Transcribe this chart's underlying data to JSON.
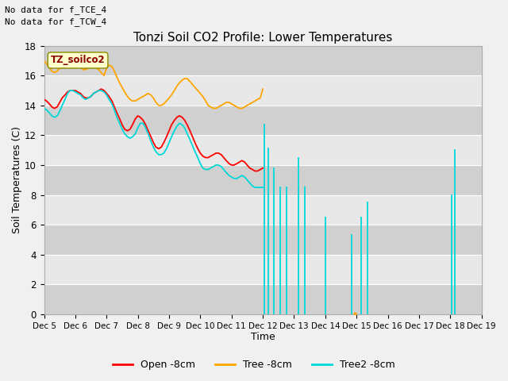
{
  "title": "Tonzi Soil CO2 Profile: Lower Temperatures",
  "xlabel": "Time",
  "ylabel": "Soil Temperatures (C)",
  "ylim": [
    0,
    18
  ],
  "xlim": [
    0,
    14
  ],
  "annotations": [
    "No data for f_TCE_4",
    "No data for f_TCW_4"
  ],
  "legend_box_label": "TZ_soilco2",
  "xtick_labels": [
    "Dec 5",
    "Dec 6",
    "Dec 7",
    "Dec 8",
    "Dec 9",
    "Dec 10",
    "Dec 11",
    "Dec 12",
    "Dec 13",
    "Dec 14",
    "Dec 15",
    "Dec 16",
    "Dec 17",
    "Dec 18",
    "Dec 19"
  ],
  "yticks": [
    0,
    2,
    4,
    6,
    8,
    10,
    12,
    14,
    16,
    18
  ],
  "colors": {
    "open": "#ff0000",
    "tree": "#ffa500",
    "tree2": "#00d8d8",
    "fig_bg": "#f0f0f0",
    "plot_bg": "#dcdcdc",
    "grid": "#ffffff",
    "band_light": "#e8e8e8",
    "band_dark": "#d0d0d0"
  },
  "legend_labels": [
    "Open -8cm",
    "Tree -8cm",
    "Tree2 -8cm"
  ],
  "open_x": [
    0.0,
    0.08,
    0.17,
    0.25,
    0.33,
    0.42,
    0.5,
    0.58,
    0.67,
    0.75,
    0.83,
    0.92,
    1.0,
    1.08,
    1.17,
    1.25,
    1.33,
    1.42,
    1.5,
    1.58,
    1.67,
    1.75,
    1.83,
    1.92,
    2.0,
    2.08,
    2.17,
    2.25,
    2.33,
    2.42,
    2.5,
    2.58,
    2.67,
    2.75,
    2.83,
    2.92,
    3.0,
    3.08,
    3.17,
    3.25,
    3.33,
    3.42,
    3.5,
    3.58,
    3.67,
    3.75,
    3.83,
    3.92,
    4.0,
    4.08,
    4.17,
    4.25,
    4.33,
    4.42,
    4.5,
    4.58,
    4.67,
    4.75,
    4.83,
    4.92,
    5.0,
    5.08,
    5.17,
    5.25,
    5.33,
    5.42,
    5.5,
    5.58,
    5.67,
    5.75,
    5.83,
    5.92,
    6.0,
    6.08,
    6.17,
    6.25,
    6.33,
    6.42,
    6.5,
    6.58,
    6.67,
    6.75,
    6.83,
    6.92,
    7.0
  ],
  "open_y": [
    14.4,
    14.3,
    14.1,
    13.9,
    13.8,
    13.9,
    14.2,
    14.5,
    14.7,
    14.9,
    15.0,
    15.0,
    15.0,
    14.9,
    14.8,
    14.6,
    14.5,
    14.5,
    14.6,
    14.8,
    14.9,
    15.0,
    15.1,
    15.0,
    14.8,
    14.6,
    14.3,
    13.9,
    13.5,
    13.1,
    12.7,
    12.4,
    12.3,
    12.4,
    12.7,
    13.1,
    13.3,
    13.2,
    13.0,
    12.7,
    12.3,
    11.9,
    11.5,
    11.2,
    11.1,
    11.2,
    11.5,
    11.9,
    12.3,
    12.7,
    13.0,
    13.2,
    13.3,
    13.2,
    13.0,
    12.7,
    12.3,
    11.9,
    11.5,
    11.1,
    10.8,
    10.6,
    10.5,
    10.5,
    10.6,
    10.7,
    10.8,
    10.8,
    10.7,
    10.5,
    10.3,
    10.1,
    10.0,
    10.0,
    10.1,
    10.2,
    10.3,
    10.2,
    10.0,
    9.8,
    9.7,
    9.6,
    9.6,
    9.7,
    9.8
  ],
  "tree_x": [
    0.0,
    0.08,
    0.17,
    0.25,
    0.33,
    0.42,
    0.5,
    0.58,
    0.67,
    0.75,
    0.83,
    0.92,
    1.0,
    1.08,
    1.17,
    1.25,
    1.33,
    1.42,
    1.5,
    1.58,
    1.67,
    1.75,
    1.83,
    1.92,
    2.0,
    2.08,
    2.17,
    2.25,
    2.33,
    2.42,
    2.5,
    2.58,
    2.67,
    2.75,
    2.83,
    2.92,
    3.0,
    3.08,
    3.17,
    3.25,
    3.33,
    3.42,
    3.5,
    3.58,
    3.67,
    3.75,
    3.83,
    3.92,
    4.0,
    4.08,
    4.17,
    4.25,
    4.33,
    4.42,
    4.5,
    4.58,
    4.67,
    4.75,
    4.83,
    4.92,
    5.0,
    5.08,
    5.17,
    5.25,
    5.33,
    5.42,
    5.5,
    5.58,
    5.67,
    5.75,
    5.83,
    5.92,
    6.0,
    6.08,
    6.17,
    6.25,
    6.33,
    6.42,
    6.5,
    6.58,
    6.67,
    6.75,
    6.83,
    6.92,
    7.0
  ],
  "tree_y": [
    17.0,
    16.8,
    16.5,
    16.3,
    16.2,
    16.3,
    16.5,
    16.7,
    16.8,
    16.8,
    16.7,
    16.6,
    16.7,
    16.7,
    16.6,
    16.4,
    16.4,
    16.5,
    16.6,
    16.6,
    16.5,
    16.4,
    16.2,
    16.0,
    16.5,
    16.7,
    16.6,
    16.3,
    15.9,
    15.5,
    15.2,
    14.9,
    14.6,
    14.4,
    14.3,
    14.3,
    14.4,
    14.5,
    14.6,
    14.7,
    14.8,
    14.7,
    14.5,
    14.2,
    14.0,
    14.0,
    14.1,
    14.3,
    14.5,
    14.7,
    15.0,
    15.3,
    15.5,
    15.7,
    15.8,
    15.8,
    15.6,
    15.4,
    15.2,
    15.0,
    14.8,
    14.6,
    14.3,
    14.0,
    13.9,
    13.8,
    13.8,
    13.9,
    14.0,
    14.1,
    14.2,
    14.2,
    14.1,
    14.0,
    13.9,
    13.8,
    13.8,
    13.9,
    14.0,
    14.1,
    14.2,
    14.3,
    14.4,
    14.5,
    15.1
  ],
  "tree2_early_x": [
    0.0,
    0.08,
    0.17,
    0.25,
    0.33,
    0.42,
    0.5,
    0.58,
    0.67,
    0.75,
    0.83,
    0.92,
    1.0,
    1.08,
    1.17,
    1.25,
    1.33,
    1.42,
    1.5,
    1.58,
    1.67,
    1.75,
    1.83,
    1.92,
    2.0,
    2.08,
    2.17,
    2.25,
    2.33,
    2.42,
    2.5,
    2.58,
    2.67,
    2.75,
    2.83,
    2.92,
    3.0,
    3.08,
    3.17,
    3.25,
    3.33,
    3.42,
    3.5,
    3.58,
    3.67,
    3.75,
    3.83,
    3.92,
    4.0,
    4.08,
    4.17,
    4.25,
    4.33,
    4.42,
    4.5,
    4.58,
    4.67,
    4.75,
    4.83,
    4.92,
    5.0,
    5.08,
    5.17,
    5.25,
    5.33,
    5.42,
    5.5,
    5.58,
    5.67,
    5.75,
    5.83,
    5.92,
    6.0,
    6.08,
    6.17,
    6.25,
    6.33,
    6.42,
    6.5,
    6.58,
    6.67,
    6.75,
    6.83,
    6.92,
    7.0
  ],
  "tree2_early_y": [
    13.8,
    13.7,
    13.5,
    13.3,
    13.2,
    13.3,
    13.6,
    14.0,
    14.4,
    14.8,
    15.0,
    15.0,
    14.9,
    14.8,
    14.7,
    14.5,
    14.4,
    14.5,
    14.6,
    14.8,
    14.9,
    15.0,
    15.0,
    14.9,
    14.7,
    14.4,
    14.1,
    13.7,
    13.2,
    12.8,
    12.4,
    12.1,
    11.9,
    11.8,
    11.9,
    12.1,
    12.5,
    12.8,
    12.8,
    12.5,
    12.1,
    11.6,
    11.2,
    10.9,
    10.7,
    10.7,
    10.8,
    11.1,
    11.5,
    11.9,
    12.3,
    12.6,
    12.8,
    12.7,
    12.5,
    12.1,
    11.7,
    11.3,
    10.9,
    10.5,
    10.1,
    9.8,
    9.7,
    9.7,
    9.8,
    9.9,
    10.0,
    10.0,
    9.9,
    9.7,
    9.5,
    9.3,
    9.2,
    9.1,
    9.1,
    9.2,
    9.3,
    9.2,
    9.0,
    8.8,
    8.6,
    8.5,
    8.5,
    8.5,
    8.5
  ],
  "spikes": [
    {
      "x": 7.05,
      "peak": 12.7
    },
    {
      "x": 7.18,
      "peak": 11.1
    },
    {
      "x": 7.35,
      "peak": 9.8
    },
    {
      "x": 7.55,
      "peak": 8.5
    },
    {
      "x": 7.75,
      "peak": 8.5
    },
    {
      "x": 8.15,
      "peak": 10.5
    },
    {
      "x": 8.35,
      "peak": 8.5
    },
    {
      "x": 9.0,
      "peak": 6.5
    },
    {
      "x": 9.85,
      "peak": 5.3
    },
    {
      "x": 10.15,
      "peak": 6.5
    },
    {
      "x": 10.35,
      "peak": 7.5
    },
    {
      "x": 13.05,
      "peak": 8.0
    },
    {
      "x": 13.15,
      "peak": 11.0
    }
  ]
}
